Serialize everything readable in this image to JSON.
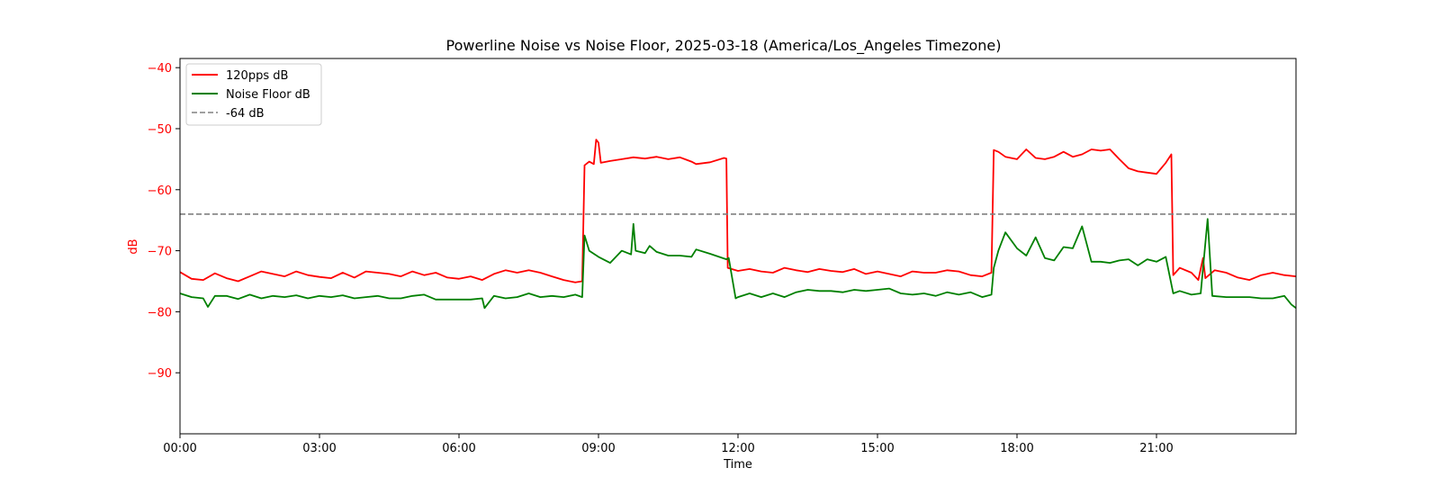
{
  "chart_data": {
    "type": "line",
    "title": "Powerline Noise vs Noise Floor, 2025-03-18 (America/Los_Angeles Timezone)",
    "xlabel": "Time",
    "ylabel": "dB",
    "x_unit": "hours since 00:00",
    "xlim": [
      0,
      24
    ],
    "ylim": [
      -100,
      -38.5
    ],
    "x_ticks": [
      {
        "value": 0,
        "label": "00:00"
      },
      {
        "value": 3,
        "label": "03:00"
      },
      {
        "value": 6,
        "label": "06:00"
      },
      {
        "value": 9,
        "label": "09:00"
      },
      {
        "value": 12,
        "label": "12:00"
      },
      {
        "value": 15,
        "label": "15:00"
      },
      {
        "value": 18,
        "label": "18:00"
      },
      {
        "value": 21,
        "label": "21:00"
      }
    ],
    "y_ticks": [
      {
        "value": -40,
        "label": "−40"
      },
      {
        "value": -50,
        "label": "−50"
      },
      {
        "value": -60,
        "label": "−60"
      },
      {
        "value": -70,
        "label": "−70"
      },
      {
        "value": -80,
        "label": "−80"
      },
      {
        "value": -90,
        "label": "−90"
      }
    ],
    "ytick_color": "#ff0000",
    "ylabel_color": "#ff0000",
    "grid": false,
    "legend_position": "top-left",
    "series": [
      {
        "name": "120pps dB",
        "color": "#ff0000",
        "style": "solid",
        "points": [
          [
            0.0,
            -73.5
          ],
          [
            0.25,
            -74.6
          ],
          [
            0.5,
            -74.8
          ],
          [
            0.75,
            -73.7
          ],
          [
            1.0,
            -74.5
          ],
          [
            1.25,
            -75.0
          ],
          [
            1.5,
            -74.2
          ],
          [
            1.75,
            -73.4
          ],
          [
            2.0,
            -73.8
          ],
          [
            2.25,
            -74.2
          ],
          [
            2.5,
            -73.4
          ],
          [
            2.75,
            -74.0
          ],
          [
            3.0,
            -74.3
          ],
          [
            3.25,
            -74.5
          ],
          [
            3.5,
            -73.6
          ],
          [
            3.75,
            -74.4
          ],
          [
            4.0,
            -73.4
          ],
          [
            4.25,
            -73.6
          ],
          [
            4.5,
            -73.8
          ],
          [
            4.75,
            -74.2
          ],
          [
            5.0,
            -73.4
          ],
          [
            5.25,
            -74.0
          ],
          [
            5.5,
            -73.6
          ],
          [
            5.75,
            -74.4
          ],
          [
            6.0,
            -74.6
          ],
          [
            6.25,
            -74.2
          ],
          [
            6.5,
            -74.8
          ],
          [
            6.75,
            -73.8
          ],
          [
            7.0,
            -73.2
          ],
          [
            7.25,
            -73.6
          ],
          [
            7.5,
            -73.2
          ],
          [
            7.75,
            -73.6
          ],
          [
            8.0,
            -74.2
          ],
          [
            8.25,
            -74.8
          ],
          [
            8.5,
            -75.2
          ],
          [
            8.65,
            -75.0
          ],
          [
            8.7,
            -56.0
          ],
          [
            8.8,
            -55.4
          ],
          [
            8.9,
            -55.8
          ],
          [
            8.95,
            -51.8
          ],
          [
            9.0,
            -52.3
          ],
          [
            9.05,
            -55.6
          ],
          [
            9.25,
            -55.3
          ],
          [
            9.5,
            -55.0
          ],
          [
            9.75,
            -54.7
          ],
          [
            10.0,
            -54.9
          ],
          [
            10.25,
            -54.6
          ],
          [
            10.5,
            -55.0
          ],
          [
            10.75,
            -54.7
          ],
          [
            11.0,
            -55.4
          ],
          [
            11.1,
            -55.8
          ],
          [
            11.4,
            -55.5
          ],
          [
            11.7,
            -54.8
          ],
          [
            11.75,
            -54.9
          ],
          [
            11.78,
            -72.8
          ],
          [
            12.0,
            -73.3
          ],
          [
            12.25,
            -73.0
          ],
          [
            12.5,
            -73.4
          ],
          [
            12.75,
            -73.6
          ],
          [
            13.0,
            -72.8
          ],
          [
            13.25,
            -73.2
          ],
          [
            13.5,
            -73.5
          ],
          [
            13.75,
            -73.0
          ],
          [
            14.0,
            -73.3
          ],
          [
            14.25,
            -73.5
          ],
          [
            14.5,
            -73.0
          ],
          [
            14.75,
            -73.8
          ],
          [
            15.0,
            -73.4
          ],
          [
            15.25,
            -73.8
          ],
          [
            15.5,
            -74.2
          ],
          [
            15.75,
            -73.4
          ],
          [
            16.0,
            -73.6
          ],
          [
            16.25,
            -73.6
          ],
          [
            16.5,
            -73.2
          ],
          [
            16.75,
            -73.4
          ],
          [
            17.0,
            -74.0
          ],
          [
            17.25,
            -74.2
          ],
          [
            17.45,
            -73.6
          ],
          [
            17.5,
            -53.5
          ],
          [
            17.6,
            -53.8
          ],
          [
            17.75,
            -54.6
          ],
          [
            18.0,
            -55.0
          ],
          [
            18.2,
            -53.4
          ],
          [
            18.4,
            -54.8
          ],
          [
            18.6,
            -55.0
          ],
          [
            18.8,
            -54.6
          ],
          [
            19.0,
            -53.8
          ],
          [
            19.2,
            -54.6
          ],
          [
            19.4,
            -54.2
          ],
          [
            19.6,
            -53.4
          ],
          [
            19.8,
            -53.6
          ],
          [
            20.0,
            -53.4
          ],
          [
            20.2,
            -55.0
          ],
          [
            20.4,
            -56.5
          ],
          [
            20.6,
            -57.0
          ],
          [
            20.8,
            -57.2
          ],
          [
            21.0,
            -57.4
          ],
          [
            21.2,
            -55.6
          ],
          [
            21.32,
            -54.2
          ],
          [
            21.36,
            -74.0
          ],
          [
            21.5,
            -72.8
          ],
          [
            21.75,
            -73.6
          ],
          [
            21.9,
            -74.8
          ],
          [
            22.0,
            -71.2
          ],
          [
            22.05,
            -74.5
          ],
          [
            22.25,
            -73.2
          ],
          [
            22.5,
            -73.6
          ],
          [
            22.75,
            -74.4
          ],
          [
            23.0,
            -74.8
          ],
          [
            23.25,
            -74.0
          ],
          [
            23.5,
            -73.6
          ],
          [
            23.75,
            -74.0
          ],
          [
            24.0,
            -74.2
          ]
        ]
      },
      {
        "name": "Noise Floor dB",
        "color": "#008000",
        "style": "solid",
        "points": [
          [
            0.0,
            -77.0
          ],
          [
            0.25,
            -77.6
          ],
          [
            0.5,
            -77.8
          ],
          [
            0.6,
            -79.2
          ],
          [
            0.75,
            -77.4
          ],
          [
            1.0,
            -77.4
          ],
          [
            1.25,
            -77.9
          ],
          [
            1.5,
            -77.2
          ],
          [
            1.75,
            -77.8
          ],
          [
            2.0,
            -77.4
          ],
          [
            2.25,
            -77.6
          ],
          [
            2.5,
            -77.3
          ],
          [
            2.75,
            -77.8
          ],
          [
            3.0,
            -77.4
          ],
          [
            3.25,
            -77.6
          ],
          [
            3.5,
            -77.3
          ],
          [
            3.75,
            -77.8
          ],
          [
            4.0,
            -77.6
          ],
          [
            4.25,
            -77.4
          ],
          [
            4.5,
            -77.8
          ],
          [
            4.75,
            -77.8
          ],
          [
            5.0,
            -77.4
          ],
          [
            5.25,
            -77.2
          ],
          [
            5.5,
            -78.0
          ],
          [
            5.75,
            -78.0
          ],
          [
            6.0,
            -78.0
          ],
          [
            6.25,
            -78.0
          ],
          [
            6.5,
            -77.8
          ],
          [
            6.55,
            -79.4
          ],
          [
            6.75,
            -77.4
          ],
          [
            7.0,
            -77.8
          ],
          [
            7.25,
            -77.6
          ],
          [
            7.5,
            -77.0
          ],
          [
            7.75,
            -77.6
          ],
          [
            8.0,
            -77.4
          ],
          [
            8.25,
            -77.6
          ],
          [
            8.5,
            -77.2
          ],
          [
            8.65,
            -77.6
          ],
          [
            8.7,
            -67.5
          ],
          [
            8.8,
            -70.0
          ],
          [
            9.0,
            -71.0
          ],
          [
            9.25,
            -72.0
          ],
          [
            9.5,
            -70.0
          ],
          [
            9.7,
            -70.6
          ],
          [
            9.75,
            -65.6
          ],
          [
            9.8,
            -70.0
          ],
          [
            10.0,
            -70.4
          ],
          [
            10.1,
            -69.2
          ],
          [
            10.25,
            -70.2
          ],
          [
            10.5,
            -70.8
          ],
          [
            10.75,
            -70.8
          ],
          [
            11.0,
            -71.0
          ],
          [
            11.1,
            -69.8
          ],
          [
            11.4,
            -70.5
          ],
          [
            11.75,
            -71.4
          ],
          [
            11.8,
            -71.2
          ],
          [
            11.95,
            -77.8
          ],
          [
            12.0,
            -77.6
          ],
          [
            12.25,
            -77.0
          ],
          [
            12.5,
            -77.6
          ],
          [
            12.75,
            -77.0
          ],
          [
            13.0,
            -77.6
          ],
          [
            13.25,
            -76.8
          ],
          [
            13.5,
            -76.4
          ],
          [
            13.75,
            -76.6
          ],
          [
            14.0,
            -76.6
          ],
          [
            14.25,
            -76.8
          ],
          [
            14.5,
            -76.4
          ],
          [
            14.75,
            -76.6
          ],
          [
            15.0,
            -76.4
          ],
          [
            15.25,
            -76.2
          ],
          [
            15.5,
            -77.0
          ],
          [
            15.75,
            -77.2
          ],
          [
            16.0,
            -77.0
          ],
          [
            16.25,
            -77.4
          ],
          [
            16.5,
            -76.8
          ],
          [
            16.75,
            -77.2
          ],
          [
            17.0,
            -76.8
          ],
          [
            17.25,
            -77.6
          ],
          [
            17.45,
            -77.2
          ],
          [
            17.5,
            -72.8
          ],
          [
            17.6,
            -70.0
          ],
          [
            17.75,
            -67.0
          ],
          [
            18.0,
            -69.6
          ],
          [
            18.2,
            -70.8
          ],
          [
            18.4,
            -67.8
          ],
          [
            18.6,
            -71.2
          ],
          [
            18.8,
            -71.6
          ],
          [
            19.0,
            -69.4
          ],
          [
            19.2,
            -69.6
          ],
          [
            19.4,
            -66.0
          ],
          [
            19.6,
            -71.8
          ],
          [
            19.8,
            -71.8
          ],
          [
            20.0,
            -72.0
          ],
          [
            20.2,
            -71.6
          ],
          [
            20.4,
            -71.4
          ],
          [
            20.6,
            -72.4
          ],
          [
            20.8,
            -71.4
          ],
          [
            21.0,
            -71.8
          ],
          [
            21.2,
            -71.0
          ],
          [
            21.36,
            -77.0
          ],
          [
            21.5,
            -76.6
          ],
          [
            21.75,
            -77.2
          ],
          [
            21.95,
            -77.0
          ],
          [
            22.1,
            -64.8
          ],
          [
            22.2,
            -77.4
          ],
          [
            22.5,
            -77.6
          ],
          [
            22.75,
            -77.6
          ],
          [
            23.0,
            -77.6
          ],
          [
            23.25,
            -77.8
          ],
          [
            23.5,
            -77.8
          ],
          [
            23.75,
            -77.4
          ],
          [
            23.9,
            -78.8
          ],
          [
            24.0,
            -79.4
          ]
        ]
      },
      {
        "name": "-64 dB",
        "color": "#808080",
        "style": "dashed",
        "points": [
          [
            0,
            -64
          ],
          [
            24,
            -64
          ]
        ]
      }
    ]
  }
}
